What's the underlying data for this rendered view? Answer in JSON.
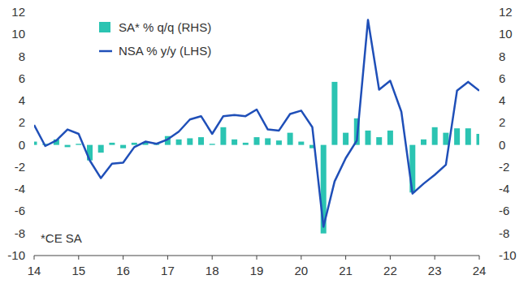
{
  "chart_data": {
    "type": "bar",
    "annotation": "*CE SA",
    "x": [
      14,
      14.25,
      14.5,
      14.75,
      15,
      15.25,
      15.5,
      15.75,
      16,
      16.25,
      16.5,
      16.75,
      17,
      17.25,
      17.5,
      17.75,
      18,
      18.25,
      18.5,
      18.75,
      19,
      19.25,
      19.5,
      19.75,
      20,
      20.25,
      20.5,
      20.75,
      21,
      21.25,
      21.5,
      21.75,
      22,
      22.25,
      22.5,
      22.75,
      23,
      23.25,
      23.5,
      23.75,
      24
    ],
    "xlim": [
      14,
      24
    ],
    "xticks": [
      14,
      15,
      16,
      17,
      18,
      19,
      20,
      21,
      22,
      23,
      24
    ],
    "ylim": [
      -10,
      12
    ],
    "yticks": [
      -10,
      -8,
      -6,
      -4,
      -2,
      0,
      2,
      4,
      6,
      8,
      10,
      12
    ],
    "y2lim": [
      -10,
      12
    ],
    "y2ticks": [
      -10,
      -8,
      -6,
      -4,
      -2,
      0,
      2,
      4,
      6,
      8,
      10,
      12
    ],
    "grid": false,
    "legend": "top-left",
    "series": [
      {
        "name": "SA* % q/q (RHS)",
        "type": "bar",
        "axis": "y2",
        "color": "#2bc4b2",
        "values": [
          0.3,
          0.1,
          0.5,
          -0.2,
          0.1,
          -1.4,
          -0.7,
          0.2,
          -0.3,
          0.2,
          0.2,
          0.1,
          0.8,
          0.5,
          0.6,
          0.7,
          0.1,
          1.6,
          0.5,
          0.2,
          0.7,
          0.6,
          0.4,
          1.1,
          0.3,
          -0.3,
          -8.0,
          5.7,
          1.1,
          2.4,
          1.3,
          0.7,
          1.3,
          0.0,
          -4.3,
          0.5,
          1.6,
          1.1,
          1.5,
          1.5,
          1.0
        ]
      },
      {
        "name": "NSA % y/y (LHS)",
        "type": "line",
        "color": "#1f4fb8",
        "values": [
          1.8,
          -0.1,
          0.4,
          1.4,
          1.0,
          -1.4,
          -3.0,
          -1.7,
          -1.6,
          -0.2,
          0.3,
          0.1,
          0.5,
          1.2,
          2.3,
          2.6,
          1.0,
          2.6,
          2.7,
          2.6,
          3.2,
          1.4,
          1.3,
          2.8,
          3.1,
          1.6,
          -7.4,
          -3.3,
          -1.2,
          0.4,
          11.3,
          5.0,
          5.8,
          3.0,
          -4.4,
          -3.5,
          -2.7,
          -1.8,
          4.9,
          5.7,
          4.9
        ]
      }
    ]
  }
}
